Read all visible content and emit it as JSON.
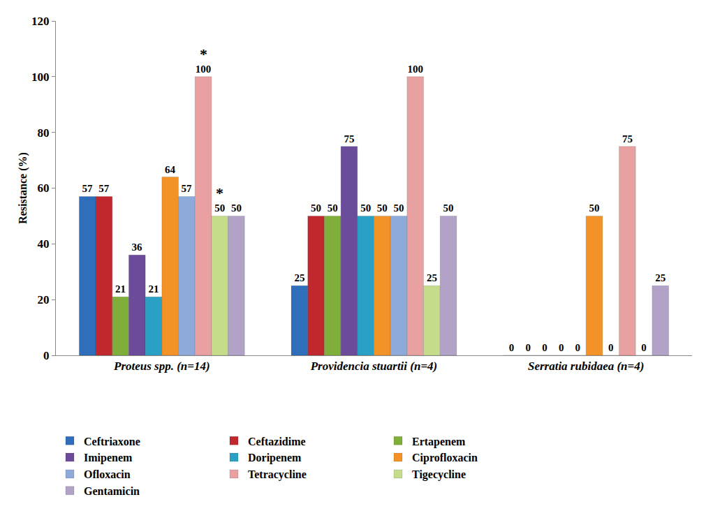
{
  "chart_data": {
    "type": "bar",
    "y_label": "Resistance (%)",
    "categories": [
      "Proteus spp. (n=14)",
      "Providencia stuartii (n=4)",
      "Serratia rubidaea (n=4)"
    ],
    "series": [
      {
        "name": "Ceftriaxone",
        "color": "#2F6EBA",
        "values": [
          57,
          25,
          0
        ]
      },
      {
        "name": "Ceftazidime",
        "color": "#C0282D",
        "values": [
          57,
          50,
          0
        ]
      },
      {
        "name": "Ertapenem",
        "color": "#7FAE3A",
        "values": [
          21,
          50,
          0
        ]
      },
      {
        "name": "Imipenem",
        "color": "#6B4C9A",
        "values": [
          36,
          75,
          0
        ]
      },
      {
        "name": "Doripenem",
        "color": "#2AA0C4",
        "values": [
          21,
          50,
          0
        ]
      },
      {
        "name": "Ciprofloxacin",
        "color": "#F39226",
        "values": [
          64,
          50,
          50
        ]
      },
      {
        "name": "Ofloxacin",
        "color": "#8EAADB",
        "values": [
          57,
          50,
          0
        ]
      },
      {
        "name": "Tetracycline",
        "color": "#E8A0A0",
        "values": [
          100,
          100,
          75
        ]
      },
      {
        "name": "Tigecycline",
        "color": "#C5DC8B",
        "values": [
          50,
          25,
          0
        ]
      },
      {
        "name": "Gentamicin",
        "color": "#B3A2C7",
        "values": [
          50,
          50,
          25
        ]
      }
    ],
    "annotations": [
      {
        "text": "*",
        "category": "Proteus spp. (n=14)",
        "series": "Tetracycline"
      },
      {
        "text": "*",
        "category": "Proteus spp. (n=14)",
        "series": "Tigecycline"
      }
    ],
    "ylim": [
      0,
      120
    ],
    "yticks": [
      0,
      20,
      40,
      60,
      80,
      100,
      120
    ],
    "grid": false,
    "legend": "bottom",
    "data_labels": true
  }
}
